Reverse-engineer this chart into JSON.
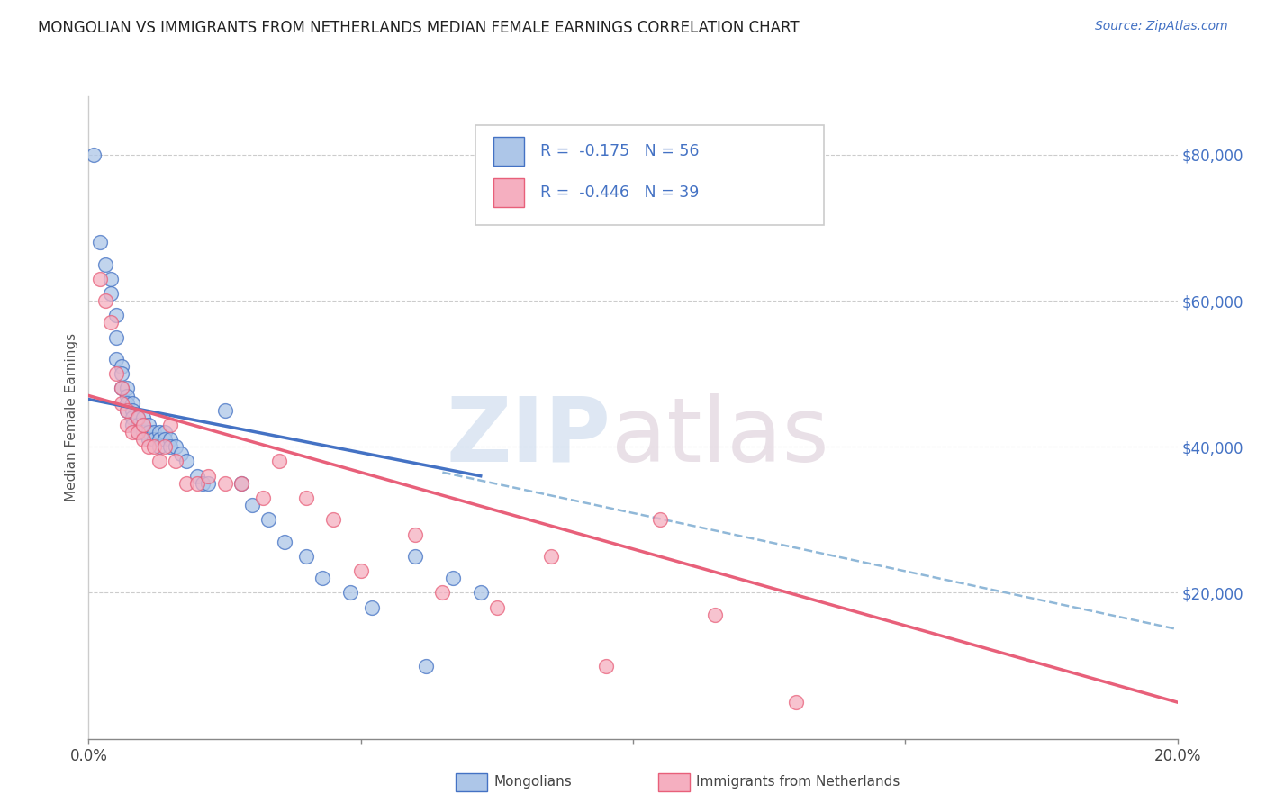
{
  "title": "MONGOLIAN VS IMMIGRANTS FROM NETHERLANDS MEDIAN FEMALE EARNINGS CORRELATION CHART",
  "source": "Source: ZipAtlas.com",
  "ylabel": "Median Female Earnings",
  "right_yticks": [
    "$80,000",
    "$60,000",
    "$40,000",
    "$20,000"
  ],
  "right_ytick_vals": [
    80000,
    60000,
    40000,
    20000
  ],
  "xlim": [
    0.0,
    0.2
  ],
  "ylim": [
    0,
    88000
  ],
  "watermark_zip": "ZIP",
  "watermark_atlas": "atlas",
  "mongolian_color": "#adc6e8",
  "netherlands_color": "#f5afc0",
  "trend_mongolian_color": "#4472c4",
  "trend_netherlands_color": "#e8607a",
  "trend_dash_color": "#90b8d8",
  "mongolian_scatter_x": [
    0.001,
    0.002,
    0.003,
    0.004,
    0.004,
    0.005,
    0.005,
    0.005,
    0.006,
    0.006,
    0.006,
    0.007,
    0.007,
    0.007,
    0.007,
    0.008,
    0.008,
    0.008,
    0.008,
    0.009,
    0.009,
    0.009,
    0.01,
    0.01,
    0.01,
    0.011,
    0.011,
    0.011,
    0.012,
    0.012,
    0.013,
    0.013,
    0.013,
    0.014,
    0.014,
    0.015,
    0.015,
    0.016,
    0.017,
    0.018,
    0.02,
    0.021,
    0.022,
    0.025,
    0.028,
    0.03,
    0.033,
    0.036,
    0.04,
    0.043,
    0.048,
    0.052,
    0.06,
    0.062,
    0.067,
    0.072
  ],
  "mongolian_scatter_y": [
    80000,
    68000,
    65000,
    63000,
    61000,
    58000,
    55000,
    52000,
    51000,
    50000,
    48000,
    48000,
    47000,
    46000,
    45000,
    46000,
    45000,
    44000,
    43000,
    44000,
    43000,
    42000,
    44000,
    43000,
    42000,
    43000,
    42000,
    41000,
    42000,
    41000,
    42000,
    41000,
    40000,
    42000,
    41000,
    41000,
    40000,
    40000,
    39000,
    38000,
    36000,
    35000,
    35000,
    45000,
    35000,
    32000,
    30000,
    27000,
    25000,
    22000,
    20000,
    18000,
    25000,
    10000,
    22000,
    20000
  ],
  "netherlands_scatter_x": [
    0.002,
    0.003,
    0.004,
    0.005,
    0.006,
    0.006,
    0.007,
    0.007,
    0.008,
    0.009,
    0.009,
    0.01,
    0.01,
    0.011,
    0.012,
    0.013,
    0.014,
    0.015,
    0.016,
    0.018,
    0.02,
    0.022,
    0.025,
    0.028,
    0.032,
    0.035,
    0.04,
    0.045,
    0.05,
    0.06,
    0.065,
    0.075,
    0.085,
    0.095,
    0.105,
    0.115,
    0.13
  ],
  "netherlands_scatter_y": [
    63000,
    60000,
    57000,
    50000,
    48000,
    46000,
    45000,
    43000,
    42000,
    44000,
    42000,
    43000,
    41000,
    40000,
    40000,
    38000,
    40000,
    43000,
    38000,
    35000,
    35000,
    36000,
    35000,
    35000,
    33000,
    38000,
    33000,
    30000,
    23000,
    28000,
    20000,
    18000,
    25000,
    10000,
    30000,
    17000,
    5000
  ],
  "blue_trend_x0": 0.0,
  "blue_trend_y0": 46500,
  "blue_trend_x1": 0.072,
  "blue_trend_y1": 36000,
  "pink_trend_x0": 0.0,
  "pink_trend_y0": 47000,
  "pink_trend_x1": 0.2,
  "pink_trend_y1": 5000,
  "dash_trend_x0": 0.065,
  "dash_trend_y0": 36500,
  "dash_trend_x1": 0.2,
  "dash_trend_y1": 15000,
  "xtick_positions": [
    0.0,
    0.05,
    0.1,
    0.15,
    0.2
  ],
  "xtick_labels_show": [
    "0.0%",
    "",
    "",
    "",
    "20.0%"
  ]
}
